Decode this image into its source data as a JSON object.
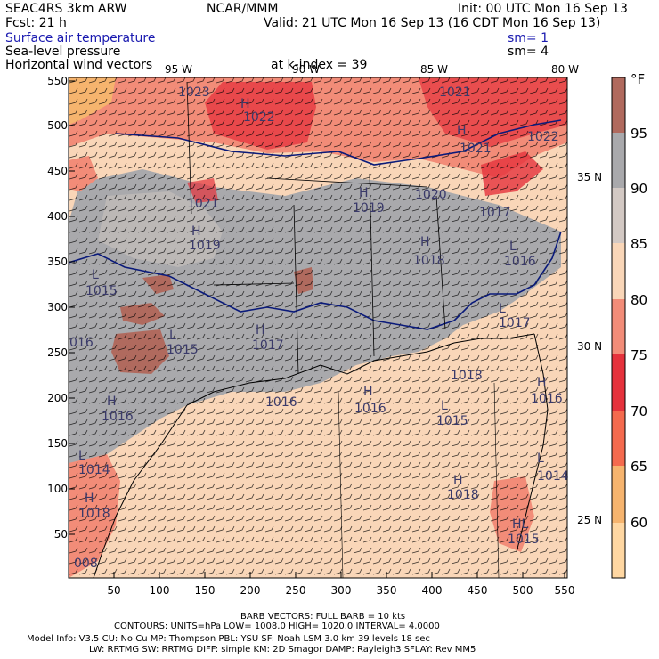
{
  "header": {
    "model": "SEAC4RS  3km ARW",
    "org": "NCAR/MMM",
    "init": "Init: 00 UTC Mon 16 Sep 13",
    "fcst": "Fcst:   21 h",
    "valid": "Valid: 21 UTC Mon 16 Sep 13 (16 CDT Mon 16 Sep 13)",
    "field1": "Surface air temperature",
    "field1_sm": "sm= 1",
    "field2": "Sea-level pressure",
    "field2_sm": "sm= 4",
    "field3": "Horizontal wind vectors",
    "level": "at k-index =  39"
  },
  "axes": {
    "y_ticks": [
      "550",
      "500",
      "450",
      "400",
      "350",
      "300",
      "250",
      "200",
      "150",
      "100",
      "50"
    ],
    "x_ticks": [
      "50",
      "100",
      "150",
      "200",
      "250",
      "300",
      "350",
      "400",
      "450",
      "500",
      "550"
    ],
    "lat_labels": [
      "35 N",
      "30 N",
      "25 N"
    ],
    "lon_labels": [
      "95 W",
      "90 W",
      "85 W",
      "80 W"
    ]
  },
  "colorbar": {
    "unit": "°F",
    "labels": [
      "95",
      "90",
      "85",
      "80",
      "75",
      "70",
      "65",
      "60"
    ],
    "colors": [
      "#b06a5e",
      "#a9a9ac",
      "#d3c9c4",
      "#f9d6b8",
      "#f28c78",
      "#e5323c",
      "#f46a4e",
      "#f6b46e",
      "#ffd7a2"
    ]
  },
  "pressure_labels": [
    {
      "text": "1023"
    },
    {
      "text": "H"
    },
    {
      "text": "1022"
    },
    {
      "text": "1021"
    },
    {
      "text": "1021"
    },
    {
      "text": "1022"
    },
    {
      "text": "H"
    },
    {
      "text": "1020"
    },
    {
      "text": "H"
    },
    {
      "text": "1019"
    },
    {
      "text": "1017"
    },
    {
      "text": "1021"
    },
    {
      "text": "H"
    },
    {
      "text": "1019"
    },
    {
      "text": "H"
    },
    {
      "text": "1018"
    },
    {
      "text": "L"
    },
    {
      "text": "1016"
    },
    {
      "text": "L"
    },
    {
      "text": "1015"
    },
    {
      "text": "L"
    },
    {
      "text": "1017"
    },
    {
      "text": "L"
    },
    {
      "text": "1015"
    },
    {
      "text": "H"
    },
    {
      "text": "1017"
    },
    {
      "text": "016"
    },
    {
      "text": "1018"
    },
    {
      "text": "H"
    },
    {
      "text": "1016"
    },
    {
      "text": "1016"
    },
    {
      "text": "H"
    },
    {
      "text": "1016"
    },
    {
      "text": "H"
    },
    {
      "text": "1016"
    },
    {
      "text": "L"
    },
    {
      "text": "1015"
    },
    {
      "text": "H"
    },
    {
      "text": "1018"
    },
    {
      "text": "L"
    },
    {
      "text": "1014"
    },
    {
      "text": "L"
    },
    {
      "text": "1014"
    },
    {
      "text": "H"
    },
    {
      "text": "1018"
    },
    {
      "text": "1016"
    },
    {
      "text": "HL"
    },
    {
      "text": "1015"
    },
    {
      "text": "008"
    }
  ],
  "footer": {
    "line1": "BARB VECTORS:  FULL BARB = 10 kts",
    "line2": "CONTOURS:  UNITS=hPa  LOW=   1008.0        HIGH= 1020.0      INTERVAL=    4.0000",
    "line3": "Model Info: V3.5         CU: No Cu      MP: Thompson      PBL: YSU        SF: Noah LSM       3.0 km   39 levels    18 sec",
    "line4": "LW: RRTMG      SW: RRTMG   DIFF: simple KM: 2D Smagor DAMP: Rayleigh3  SFLAY: Rev MM5"
  }
}
